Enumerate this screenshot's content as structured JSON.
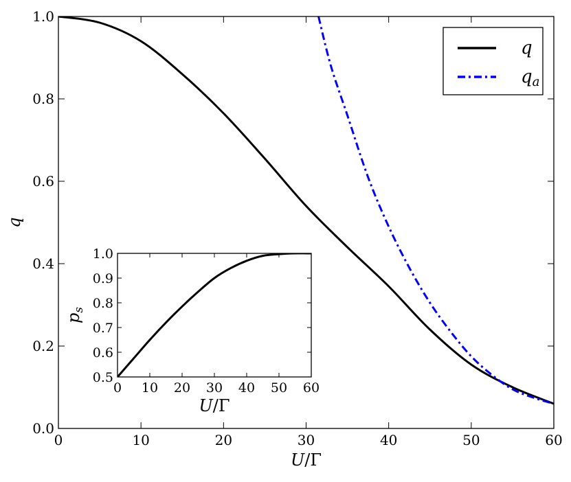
{
  "chart_data": [
    {
      "type": "line",
      "xlabel": "U/Γ",
      "ylabel": "q",
      "xlim": [
        0,
        60
      ],
      "ylim": [
        0.0,
        1.0
      ],
      "x_ticks": [
        "0",
        "10",
        "20",
        "30",
        "40",
        "50",
        "60"
      ],
      "y_ticks": [
        "0.0",
        "0.2",
        "0.4",
        "0.6",
        "0.8",
        "1.0"
      ],
      "legend_position": "top-right",
      "series": [
        {
          "name": "q",
          "color": "#000000",
          "style": "solid",
          "x": [
            0,
            5,
            10,
            15,
            20,
            25,
            30,
            35,
            40,
            45,
            50,
            55,
            60
          ],
          "y": [
            1.0,
            0.985,
            0.94,
            0.86,
            0.765,
            0.655,
            0.54,
            0.44,
            0.345,
            0.24,
            0.155,
            0.1,
            0.06
          ]
        },
        {
          "name": "q_a",
          "color": "#0000ff",
          "style": "dashdot",
          "x": [
            31.5,
            33,
            35,
            37.5,
            40,
            42.5,
            45,
            47.5,
            50,
            52.5,
            55,
            57.5,
            60
          ],
          "y": [
            1.0,
            0.88,
            0.76,
            0.61,
            0.49,
            0.39,
            0.305,
            0.235,
            0.175,
            0.13,
            0.095,
            0.075,
            0.06
          ]
        }
      ]
    },
    {
      "type": "line",
      "xlabel": "U/Γ",
      "ylabel": "p_s",
      "xlim": [
        0,
        60
      ],
      "ylim": [
        0.5,
        1.0
      ],
      "x_ticks": [
        "0",
        "10",
        "20",
        "30",
        "40",
        "50",
        "60"
      ],
      "y_ticks": [
        "0.5",
        "0.6",
        "0.7",
        "0.8",
        "0.9",
        "1.0"
      ],
      "series": [
        {
          "color": "#000000",
          "style": "solid",
          "x": [
            0,
            5,
            10,
            15,
            20,
            25,
            30,
            35,
            40,
            45,
            50,
            55,
            60
          ],
          "y": [
            0.5,
            0.575,
            0.65,
            0.72,
            0.785,
            0.845,
            0.9,
            0.94,
            0.97,
            0.99,
            0.997,
            1.0,
            1.0
          ]
        }
      ]
    }
  ]
}
